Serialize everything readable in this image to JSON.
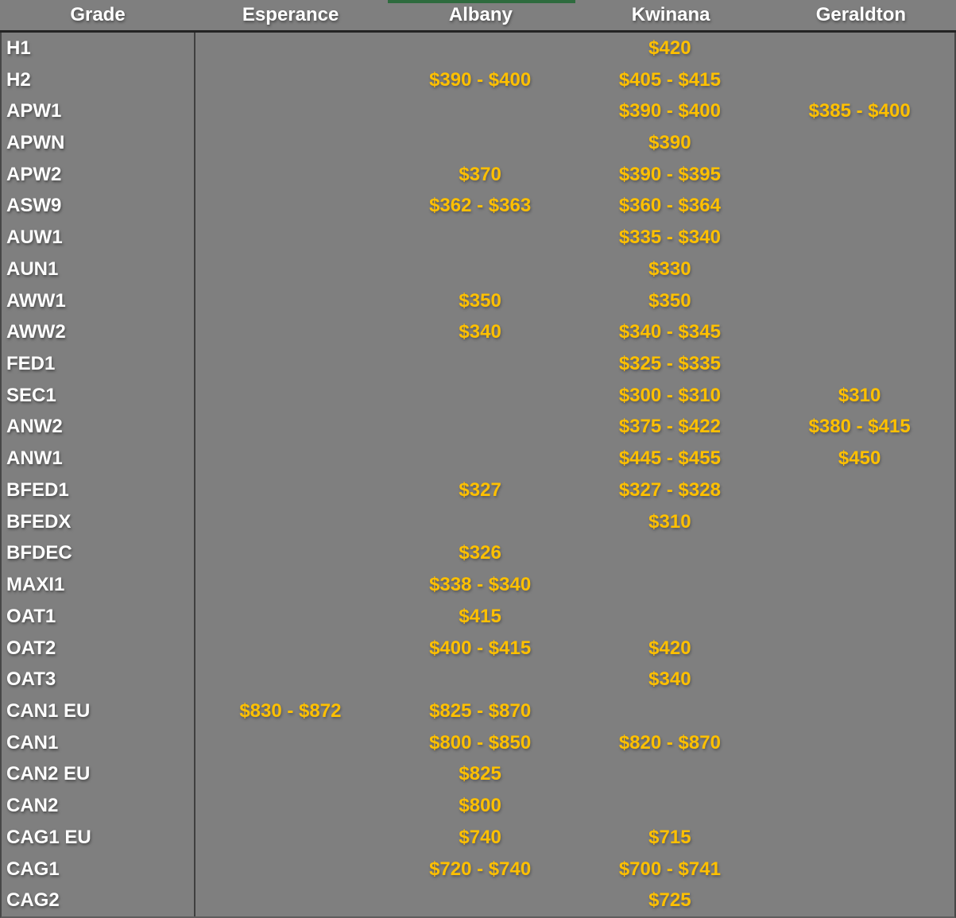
{
  "colors": {
    "background": "#7F7F7F",
    "header_text": "#FFFFFF",
    "grade_text": "#FFFFFF",
    "price_text": "#FFC000",
    "divider": "#3F3F3F",
    "top_accent": "#2E6B3E"
  },
  "table": {
    "columns": [
      "Grade",
      "Esperance",
      "Albany",
      "Kwinana",
      "Geraldton"
    ],
    "rows": [
      {
        "grade": "H1",
        "esperance": "",
        "albany": "",
        "kwinana": "$420",
        "geraldton": ""
      },
      {
        "grade": "H2",
        "esperance": "",
        "albany": "$390 - $400",
        "kwinana": "$405 - $415",
        "geraldton": ""
      },
      {
        "grade": "APW1",
        "esperance": "",
        "albany": "",
        "kwinana": "$390 - $400",
        "geraldton": "$385 - $400"
      },
      {
        "grade": "APWN",
        "esperance": "",
        "albany": "",
        "kwinana": "$390",
        "geraldton": ""
      },
      {
        "grade": "APW2",
        "esperance": "",
        "albany": "$370",
        "kwinana": "$390 - $395",
        "geraldton": ""
      },
      {
        "grade": "ASW9",
        "esperance": "",
        "albany": "$362 - $363",
        "kwinana": "$360 - $364",
        "geraldton": ""
      },
      {
        "grade": "AUW1",
        "esperance": "",
        "albany": "",
        "kwinana": "$335 - $340",
        "geraldton": ""
      },
      {
        "grade": "AUN1",
        "esperance": "",
        "albany": "",
        "kwinana": "$330",
        "geraldton": ""
      },
      {
        "grade": "AWW1",
        "esperance": "",
        "albany": "$350",
        "kwinana": "$350",
        "geraldton": ""
      },
      {
        "grade": "AWW2",
        "esperance": "",
        "albany": "$340",
        "kwinana": "$340 - $345",
        "geraldton": ""
      },
      {
        "grade": "FED1",
        "esperance": "",
        "albany": "",
        "kwinana": "$325 - $335",
        "geraldton": ""
      },
      {
        "grade": "SEC1",
        "esperance": "",
        "albany": "",
        "kwinana": "$300 - $310",
        "geraldton": "$310"
      },
      {
        "grade": "ANW2",
        "esperance": "",
        "albany": "",
        "kwinana": "$375 - $422",
        "geraldton": "$380 - $415"
      },
      {
        "grade": "ANW1",
        "esperance": "",
        "albany": "",
        "kwinana": "$445 - $455",
        "geraldton": "$450"
      },
      {
        "grade": "BFED1",
        "esperance": "",
        "albany": "$327",
        "kwinana": "$327 - $328",
        "geraldton": ""
      },
      {
        "grade": "BFEDX",
        "esperance": "",
        "albany": "",
        "kwinana": "$310",
        "geraldton": ""
      },
      {
        "grade": "BFDEC",
        "esperance": "",
        "albany": "$326",
        "kwinana": "",
        "geraldton": ""
      },
      {
        "grade": "MAXI1",
        "esperance": "",
        "albany": "$338 - $340",
        "kwinana": "",
        "geraldton": ""
      },
      {
        "grade": "OAT1",
        "esperance": "",
        "albany": "$415",
        "kwinana": "",
        "geraldton": ""
      },
      {
        "grade": "OAT2",
        "esperance": "",
        "albany": "$400 - $415",
        "kwinana": "$420",
        "geraldton": ""
      },
      {
        "grade": "OAT3",
        "esperance": "",
        "albany": "",
        "kwinana": "$340",
        "geraldton": ""
      },
      {
        "grade": "CAN1 EU",
        "esperance": "$830 - $872",
        "albany": "$825 - $870",
        "kwinana": "",
        "geraldton": ""
      },
      {
        "grade": "CAN1",
        "esperance": "",
        "albany": "$800 - $850",
        "kwinana": "$820 - $870",
        "geraldton": ""
      },
      {
        "grade": "CAN2 EU",
        "esperance": "",
        "albany": "$825",
        "kwinana": "",
        "geraldton": ""
      },
      {
        "grade": "CAN2",
        "esperance": "",
        "albany": "$800",
        "kwinana": "",
        "geraldton": ""
      },
      {
        "grade": "CAG1 EU",
        "esperance": "",
        "albany": "$740",
        "kwinana": "$715",
        "geraldton": ""
      },
      {
        "grade": "CAG1",
        "esperance": "",
        "albany": "$720 - $740",
        "kwinana": "$700 - $741",
        "geraldton": ""
      },
      {
        "grade": "CAG2",
        "esperance": "",
        "albany": "",
        "kwinana": "$725",
        "geraldton": ""
      }
    ]
  }
}
